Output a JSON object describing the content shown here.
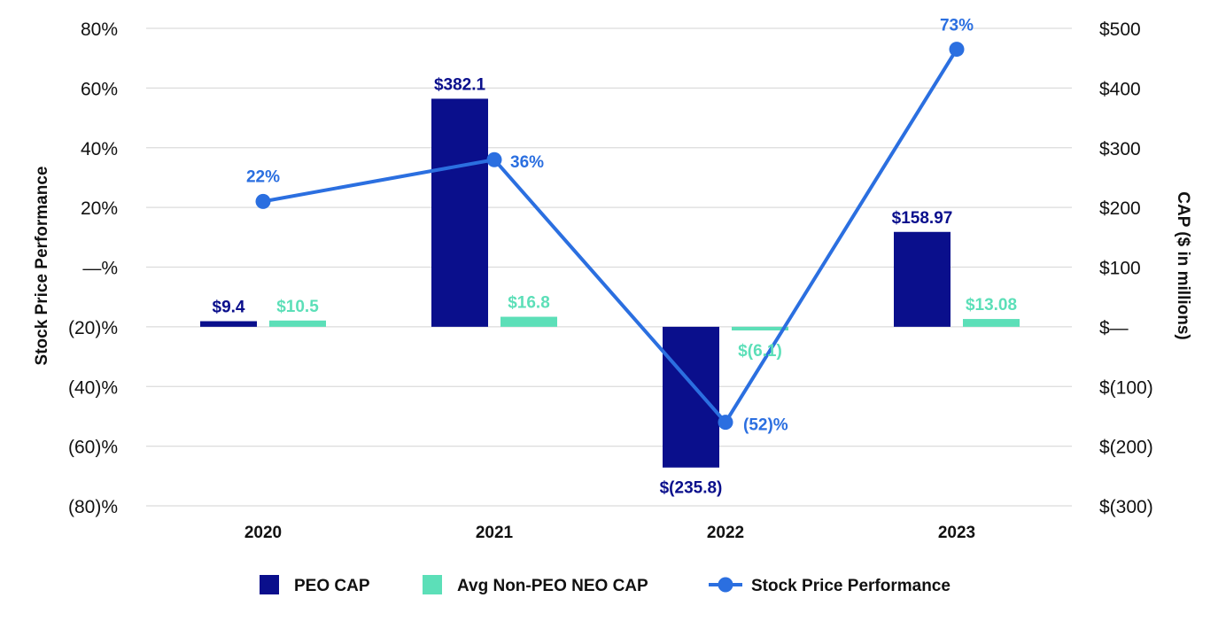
{
  "chart_data": {
    "type": "bar",
    "categories": [
      "2020",
      "2021",
      "2022",
      "2023"
    ],
    "series": [
      {
        "name": "PEO CAP",
        "kind": "bar",
        "axis": "right",
        "color": "#0a0f8c",
        "values": [
          9.4,
          382.1,
          -235.8,
          158.97
        ],
        "labels": [
          "$9.4",
          "$382.1",
          "$(235.8)",
          "$158.97"
        ]
      },
      {
        "name": "Avg Non-PEO NEO CAP",
        "kind": "bar",
        "axis": "right",
        "color": "#5cdfb8",
        "values": [
          10.5,
          16.8,
          -6.1,
          13.08
        ],
        "labels": [
          "$10.5",
          "$16.8",
          "$(6.1)",
          "$13.08"
        ]
      },
      {
        "name": "Stock Price Performance",
        "kind": "line",
        "axis": "left",
        "color": "#2b6fe0",
        "values": [
          22,
          36,
          -52,
          73
        ],
        "labels": [
          "22%",
          "36%",
          "(52)%",
          "73%"
        ]
      }
    ],
    "left_axis": {
      "title": "Stock Price Performance",
      "range": [
        -80,
        80
      ],
      "ticks": [
        80,
        60,
        40,
        20,
        0,
        -20,
        -40,
        -60,
        -80
      ],
      "tick_labels": [
        "80%",
        "60%",
        "40%",
        "20%",
        "—%",
        "(20)%",
        "(40)%",
        "(60)%",
        "(80)%"
      ]
    },
    "right_axis": {
      "title": "CAP ($ in millions)",
      "range": [
        -300,
        500
      ],
      "ticks": [
        500,
        400,
        300,
        200,
        100,
        0,
        -100,
        -200,
        -300
      ],
      "tick_labels": [
        "$500",
        "$400",
        "$300",
        "$200",
        "$100",
        "$—",
        "$(100)",
        "$(200)",
        "$(300)"
      ]
    },
    "grid": true,
    "legend_position": "bottom"
  }
}
